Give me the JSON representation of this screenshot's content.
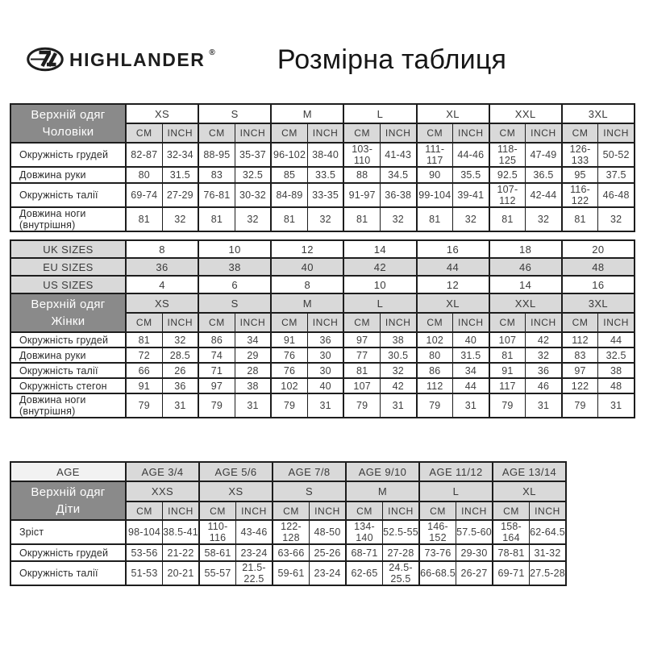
{
  "brand": {
    "name": "HIGHLANDER",
    "registered": "®",
    "logo_icon": "highlander-oval-monogram"
  },
  "title": "Розмірна таблиця",
  "colors": {
    "header_dark": "#8a8a8a",
    "cell_light_gray": "#d9d9d9",
    "cell_lighter_gray": "#f2f2f2",
    "border": "#1d1d1d"
  },
  "units": [
    "CM",
    "INCH"
  ],
  "men": {
    "header_line1": "Верхній одяг",
    "header_line2": "Чоловіки",
    "sizes": [
      "XS",
      "S",
      "M",
      "L",
      "XL",
      "XXL",
      "3XL"
    ],
    "rows": [
      {
        "label": "Окружність грудей",
        "cells": [
          [
            "82-87",
            "32-34"
          ],
          [
            "88-95",
            "35-37"
          ],
          [
            "96-102",
            "38-40"
          ],
          [
            "103-110",
            "41-43"
          ],
          [
            "111-117",
            "44-46"
          ],
          [
            "118-125",
            "47-49"
          ],
          [
            "126-133",
            "50-52"
          ]
        ]
      },
      {
        "label": "Довжина руки",
        "cells": [
          [
            "80",
            "31.5"
          ],
          [
            "83",
            "32.5"
          ],
          [
            "85",
            "33.5"
          ],
          [
            "88",
            "34.5"
          ],
          [
            "90",
            "35.5"
          ],
          [
            "92.5",
            "36.5"
          ],
          [
            "95",
            "37.5"
          ]
        ]
      },
      {
        "label": "Окружність талії",
        "cells": [
          [
            "69-74",
            "27-29"
          ],
          [
            "76-81",
            "30-32"
          ],
          [
            "84-89",
            "33-35"
          ],
          [
            "91-97",
            "36-38"
          ],
          [
            "99-104",
            "39-41"
          ],
          [
            "107-112",
            "42-44"
          ],
          [
            "116-122",
            "46-48"
          ]
        ]
      },
      {
        "label": "Довжина ноги (внутрішня)",
        "cells": [
          [
            "81",
            "32"
          ],
          [
            "81",
            "32"
          ],
          [
            "81",
            "32"
          ],
          [
            "81",
            "32"
          ],
          [
            "81",
            "32"
          ],
          [
            "81",
            "32"
          ],
          [
            "81",
            "32"
          ]
        ]
      }
    ]
  },
  "women": {
    "conversion_rows": [
      {
        "label": "UK SIZES",
        "shaded": false,
        "values": [
          "8",
          "10",
          "12",
          "14",
          "16",
          "18",
          "20"
        ]
      },
      {
        "label": "EU SIZES",
        "shaded": true,
        "values": [
          "36",
          "38",
          "40",
          "42",
          "44",
          "46",
          "48"
        ]
      },
      {
        "label": "US SIZES",
        "shaded": false,
        "values": [
          "4",
          "6",
          "8",
          "10",
          "12",
          "14",
          "16"
        ]
      }
    ],
    "header_line1": "Верхній одяг",
    "header_line2": "Жінки",
    "sizes": [
      "XS",
      "S",
      "M",
      "L",
      "XL",
      "XXL",
      "3XL"
    ],
    "rows": [
      {
        "label": "Окружність грудей",
        "cells": [
          [
            "81",
            "32"
          ],
          [
            "86",
            "34"
          ],
          [
            "91",
            "36"
          ],
          [
            "97",
            "38"
          ],
          [
            "102",
            "40"
          ],
          [
            "107",
            "42"
          ],
          [
            "112",
            "44"
          ]
        ]
      },
      {
        "label": "Довжина руки",
        "cells": [
          [
            "72",
            "28.5"
          ],
          [
            "74",
            "29"
          ],
          [
            "76",
            "30"
          ],
          [
            "77",
            "30.5"
          ],
          [
            "80",
            "31.5"
          ],
          [
            "81",
            "32"
          ],
          [
            "83",
            "32.5"
          ]
        ]
      },
      {
        "label": "Окружність талії",
        "cells": [
          [
            "66",
            "26"
          ],
          [
            "71",
            "28"
          ],
          [
            "76",
            "30"
          ],
          [
            "81",
            "32"
          ],
          [
            "86",
            "34"
          ],
          [
            "91",
            "36"
          ],
          [
            "97",
            "38"
          ]
        ]
      },
      {
        "label": "Окружність стегон",
        "cells": [
          [
            "91",
            "36"
          ],
          [
            "97",
            "38"
          ],
          [
            "102",
            "40"
          ],
          [
            "107",
            "42"
          ],
          [
            "112",
            "44"
          ],
          [
            "117",
            "46"
          ],
          [
            "122",
            "48"
          ]
        ]
      },
      {
        "label": "Довжина ноги (внутрішня)",
        "cells": [
          [
            "79",
            "31"
          ],
          [
            "79",
            "31"
          ],
          [
            "79",
            "31"
          ],
          [
            "79",
            "31"
          ],
          [
            "79",
            "31"
          ],
          [
            "79",
            "31"
          ],
          [
            "79",
            "31"
          ]
        ]
      }
    ]
  },
  "kids": {
    "age_label": "AGE",
    "ages": [
      "AGE 3/4",
      "AGE 5/6",
      "AGE 7/8",
      "AGE 9/10",
      "AGE 11/12",
      "AGE 13/14"
    ],
    "header_line1": "Верхній одяг",
    "header_line2": "Діти",
    "sizes": [
      "XXS",
      "XS",
      "S",
      "M",
      "L",
      "XL"
    ],
    "rows": [
      {
        "label": "Зріст",
        "cells": [
          [
            "98-104",
            "38.5-41"
          ],
          [
            "110-116",
            "43-46"
          ],
          [
            "122-128",
            "48-50"
          ],
          [
            "134-140",
            "52.5-55"
          ],
          [
            "146-152",
            "57.5-60"
          ],
          [
            "158-164",
            "62-64.5"
          ]
        ]
      },
      {
        "label": "Окружність грудей",
        "cells": [
          [
            "53-56",
            "21-22"
          ],
          [
            "58-61",
            "23-24"
          ],
          [
            "63-66",
            "25-26"
          ],
          [
            "68-71",
            "27-28"
          ],
          [
            "73-76",
            "29-30"
          ],
          [
            "78-81",
            "31-32"
          ]
        ]
      },
      {
        "label": "Окружність талії",
        "cells": [
          [
            "51-53",
            "20-21"
          ],
          [
            "55-57",
            "21.5-22.5"
          ],
          [
            "59-61",
            "23-24"
          ],
          [
            "62-65",
            "24.5-25.5"
          ],
          [
            "66-68.5",
            "26-27"
          ],
          [
            "69-71",
            "27.5-28"
          ]
        ]
      }
    ]
  }
}
